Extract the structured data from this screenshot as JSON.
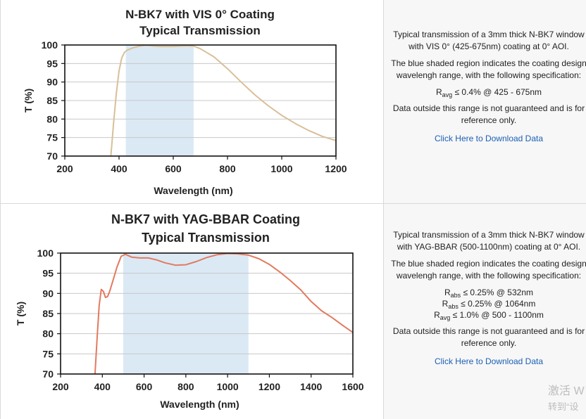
{
  "rows": [
    {
      "description": {
        "para1": "Typical transmission of a 3mm thick N-BK7 window with VIS 0° (425-675nm) coating at 0° AOI.",
        "para2": "The blue shaded region indicates the coating design wavelengh range, with the following specification:",
        "specs": [
          {
            "main": "R",
            "sub": "avg",
            "rest": " ≤ 0.4% @ 425 - 675nm"
          }
        ],
        "para3": "Data outside this range is not guaranteed and is for reference only.",
        "link": "Click Here to Download Data"
      }
    },
    {
      "description": {
        "para1": "Typical transmission of a 3mm thick N-BK7 window with YAG-BBAR (500-1100nm) coating at 0° AOI.",
        "para2": "The blue shaded region indicates the coating design wavelengh range, with the following specification:",
        "specs": [
          {
            "main": "R",
            "sub": "abs",
            "rest": " ≤ 0.25% @ 532nm"
          },
          {
            "main": "R",
            "sub": "abs",
            "rest": " ≤ 0.25% @ 1064nm"
          },
          {
            "main": "R",
            "sub": "avg",
            "rest": " ≤ 1.0% @ 500 - 1100nm"
          }
        ],
        "para3": "Data outside this range is not guaranteed and is for reference only.",
        "link": "Click Here to Download Data"
      }
    }
  ],
  "watermark": {
    "line1": "激活 W",
    "line2": "转到“设"
  },
  "colors": {
    "shade": "#dbe9f5",
    "curve1": "#d9bf98",
    "curve2": "#e37a5f",
    "grid": "#c8c8c8",
    "link": "#1a5fb4"
  },
  "chart_data": [
    {
      "type": "line",
      "title": [
        "N-BK7 with VIS 0° Coating",
        "Typical Transmission"
      ],
      "xlabel": "Wavelength (nm)",
      "ylabel": "T (%)",
      "xlim": [
        200,
        1200
      ],
      "ylim": [
        70,
        100
      ],
      "xticks": [
        200,
        400,
        600,
        800,
        1000,
        1200
      ],
      "yticks": [
        70,
        75,
        80,
        85,
        90,
        95,
        100
      ],
      "shaded_range": [
        425,
        675
      ],
      "grid": true,
      "series": [
        {
          "x": [
            370,
            380,
            390,
            400,
            410,
            420,
            430,
            450,
            475,
            500,
            550,
            600,
            650,
            675,
            700,
            750,
            800,
            850,
            900,
            950,
            1000,
            1050,
            1100,
            1150,
            1200
          ],
          "values": [
            70,
            79,
            87,
            93,
            96.5,
            98,
            98.6,
            99.2,
            99.7,
            99.9,
            99.6,
            99.6,
            99.8,
            99.7,
            99.0,
            96.8,
            93.6,
            90.0,
            86.6,
            83.6,
            81.0,
            78.8,
            76.9,
            75.3,
            74.2
          ]
        }
      ]
    },
    {
      "type": "line",
      "title": [
        "N-BK7 with YAG-BBAR Coating",
        "Typical Transmission"
      ],
      "xlabel": "Wavelength (nm)",
      "ylabel": "T (%)",
      "xlim": [
        200,
        1600
      ],
      "ylim": [
        70,
        100
      ],
      "xticks": [
        200,
        400,
        600,
        800,
        1000,
        1200,
        1400,
        1600
      ],
      "yticks": [
        70,
        75,
        80,
        85,
        90,
        95,
        100
      ],
      "shaded_range": [
        500,
        1100
      ],
      "grid": true,
      "series": [
        {
          "x": [
            365,
            375,
            385,
            395,
            405,
            415,
            425,
            435,
            450,
            470,
            490,
            510,
            540,
            580,
            620,
            660,
            700,
            750,
            800,
            850,
            900,
            950,
            1000,
            1050,
            1100,
            1150,
            1200,
            1250,
            1300,
            1350,
            1400,
            1450,
            1500,
            1550,
            1600
          ],
          "values": [
            70,
            79,
            87,
            91,
            90.5,
            89,
            89.2,
            90.5,
            93,
            96.5,
            99.2,
            99.7,
            99.0,
            98.8,
            98.8,
            98.3,
            97.6,
            97.0,
            97.1,
            97.9,
            98.9,
            99.6,
            99.9,
            99.8,
            99.5,
            98.6,
            97.2,
            95.3,
            93.2,
            90.9,
            88.0,
            85.7,
            84.0,
            82.1,
            80.3
          ]
        }
      ]
    }
  ]
}
